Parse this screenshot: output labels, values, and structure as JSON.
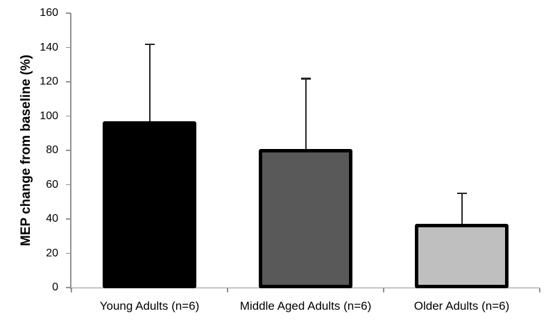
{
  "chart_data": {
    "type": "bar",
    "title": "",
    "ylabel": "MEP change from baseline (%)",
    "xlabel": "",
    "ylim": [
      0,
      160
    ],
    "yticks": [
      0,
      20,
      40,
      60,
      80,
      100,
      120,
      140,
      160
    ],
    "categories": [
      "Young Adults (n=6)",
      "Middle Aged Adults (n=6)",
      "Older Adults (n=6)"
    ],
    "values": [
      97,
      81,
      37
    ],
    "error_plus": [
      45,
      41,
      18
    ],
    "bar_fill_colors": [
      "#000000",
      "#595959",
      "#bfbfbf"
    ],
    "bar_border_color": "#000000",
    "grid": false,
    "legend": false
  },
  "colors": {
    "background": "#ffffff",
    "axis": "#919191",
    "error_bar": "#262626",
    "text": "#000000"
  }
}
